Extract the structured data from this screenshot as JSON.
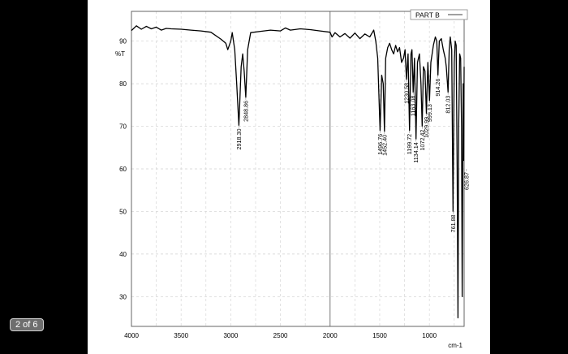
{
  "viewer": {
    "page_indicator": "2 of 6",
    "background_color": "#000000",
    "sheet_color": "#ffffff"
  },
  "chart_data": {
    "type": "line",
    "legend": {
      "label": "PART B",
      "placement": "top-right"
    },
    "ylabel": "%T",
    "xlabel": "cm-1",
    "xlim": [
      4000,
      650
    ],
    "ylim": [
      23,
      97
    ],
    "x_reversed": true,
    "grid": true,
    "xticks": [
      4000,
      3500,
      3000,
      2500,
      2000,
      1500,
      1000
    ],
    "yticks": [
      30,
      40,
      50,
      60,
      70,
      80,
      90
    ],
    "series": [
      {
        "color": "#000000",
        "points": [
          [
            4000,
            92.5
          ],
          [
            3950,
            93.6
          ],
          [
            3900,
            92.8
          ],
          [
            3850,
            93.5
          ],
          [
            3800,
            92.9
          ],
          [
            3750,
            93.3
          ],
          [
            3700,
            92.6
          ],
          [
            3650,
            93.0
          ],
          [
            3600,
            92.9
          ],
          [
            3500,
            92.8
          ],
          [
            3400,
            92.6
          ],
          [
            3300,
            92.4
          ],
          [
            3200,
            92.1
          ],
          [
            3100,
            90.5
          ],
          [
            3050,
            89.5
          ],
          [
            3030,
            88.0
          ],
          [
            3000,
            90.0
          ],
          [
            2985,
            92.0
          ],
          [
            2960,
            88.0
          ],
          [
            2940,
            80.0
          ],
          [
            2918.3,
            70.2
          ],
          [
            2895,
            84.0
          ],
          [
            2880,
            87.0
          ],
          [
            2865,
            83.0
          ],
          [
            2848.86,
            76.8
          ],
          [
            2830,
            88.0
          ],
          [
            2800,
            92.0
          ],
          [
            2700,
            92.3
          ],
          [
            2600,
            92.6
          ],
          [
            2500,
            92.4
          ],
          [
            2450,
            93.1
          ],
          [
            2400,
            92.6
          ],
          [
            2300,
            92.9
          ],
          [
            2200,
            92.7
          ],
          [
            2100,
            92.4
          ],
          [
            2000,
            92.1
          ],
          [
            1980,
            91.0
          ],
          [
            1950,
            92.0
          ],
          [
            1900,
            91.0
          ],
          [
            1850,
            91.8
          ],
          [
            1800,
            90.7
          ],
          [
            1750,
            91.9
          ],
          [
            1700,
            90.6
          ],
          [
            1650,
            91.7
          ],
          [
            1600,
            91.0
          ],
          [
            1560,
            92.6
          ],
          [
            1540,
            90.0
          ],
          [
            1520,
            86.0
          ],
          [
            1496.76,
            69.0
          ],
          [
            1480,
            82.0
          ],
          [
            1465,
            80.0
          ],
          [
            1452.4,
            68.8
          ],
          [
            1440,
            86.0
          ],
          [
            1420,
            88.5
          ],
          [
            1400,
            89.5
          ],
          [
            1380,
            88.0
          ],
          [
            1360,
            87.0
          ],
          [
            1340,
            89.0
          ],
          [
            1320,
            87.5
          ],
          [
            1300,
            88.5
          ],
          [
            1280,
            85.0
          ],
          [
            1260,
            86.0
          ],
          [
            1245,
            88.0
          ],
          [
            1230.58,
            81.0
          ],
          [
            1215,
            87.0
          ],
          [
            1199.72,
            69.0
          ],
          [
            1185,
            87.0
          ],
          [
            1175,
            88.0
          ],
          [
            1163.08,
            78.0
          ],
          [
            1150,
            86.0
          ],
          [
            1134.14,
            67.0
          ],
          [
            1120,
            85.0
          ],
          [
            1100,
            87.0
          ],
          [
            1085,
            80.0
          ],
          [
            1072.42,
            70.0
          ],
          [
            1060,
            84.0
          ],
          [
            1045,
            83.0
          ],
          [
            1029.99,
            73.0
          ],
          [
            1015,
            85.0
          ],
          [
            999.13,
            76.0
          ],
          [
            985,
            85.0
          ],
          [
            960,
            89.0
          ],
          [
            940,
            91.0
          ],
          [
            925,
            90.0
          ],
          [
            914.26,
            82.0
          ],
          [
            900,
            90.0
          ],
          [
            880,
            90.6
          ],
          [
            860,
            88.0
          ],
          [
            840,
            86.0
          ],
          [
            830,
            84.0
          ],
          [
            812.03,
            78.0
          ],
          [
            800,
            88.0
          ],
          [
            790,
            91.0
          ],
          [
            775,
            88.0
          ],
          [
            761.88,
            50.0
          ],
          [
            750,
            85.0
          ],
          [
            740,
            90.0
          ],
          [
            730,
            89.0
          ],
          [
            720,
            60.0
          ],
          [
            712,
            25.0
          ],
          [
            705,
            70.0
          ],
          [
            695,
            87.0
          ],
          [
            685,
            86.0
          ],
          [
            676,
            70.0
          ],
          [
            670,
            30.0
          ],
          [
            660,
            80.0
          ],
          [
            655,
            62.0
          ],
          [
            650,
            84.0
          ]
        ]
      }
    ],
    "peak_labels": [
      {
        "x": 2918.3,
        "text": "2918.30",
        "leader_end": 70.2
      },
      {
        "x": 2848.86,
        "text": "2848.86",
        "leader_end": 76.8
      },
      {
        "x": 1496.76,
        "text": "1496.76",
        "leader_end": 69.0
      },
      {
        "x": 1452.4,
        "text": "1452.40",
        "leader_end": 68.8
      },
      {
        "x": 1230.58,
        "text": "1230.58",
        "leader_end": 81.0
      },
      {
        "x": 1199.72,
        "text": "1199.72",
        "leader_end": 69.0
      },
      {
        "x": 1163.08,
        "text": "1163.08",
        "leader_end": 78.0
      },
      {
        "x": 1134.14,
        "text": "1134.14",
        "leader_end": 67.0
      },
      {
        "x": 1072.42,
        "text": "1072.42",
        "leader_end": 70.0
      },
      {
        "x": 1029.99,
        "text": "1029.99",
        "leader_end": 73.0
      },
      {
        "x": 999.13,
        "text": "999.13",
        "leader_end": 76.0
      },
      {
        "x": 914.26,
        "text": "914.26",
        "leader_end": 82.0
      },
      {
        "x": 812.03,
        "text": "812.03",
        "leader_end": 78.0
      },
      {
        "x": 761.88,
        "text": "761.88",
        "leader_end": 50.0
      },
      {
        "x": 626.87,
        "text": "626.87",
        "leader_end": 60.0
      }
    ]
  }
}
